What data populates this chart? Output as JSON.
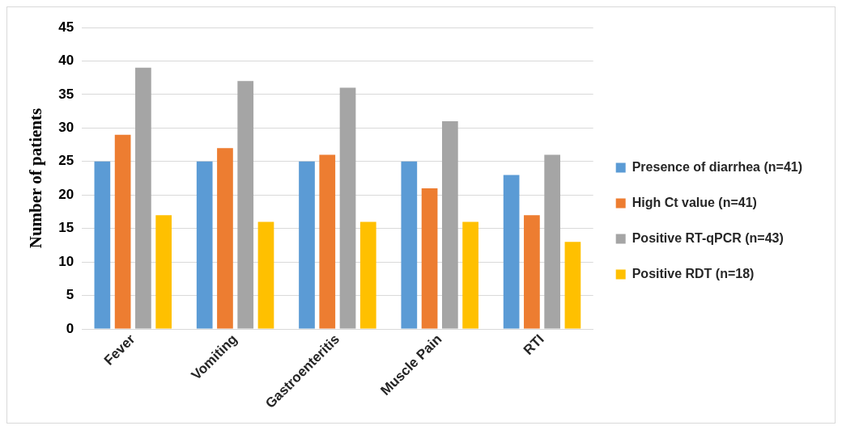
{
  "chart_data": {
    "type": "bar",
    "ylabel": "Number of patients",
    "categories": [
      "Fever",
      "Vomiting",
      "Gastroenteritis",
      "Muscle Pain",
      "RTI"
    ],
    "series": [
      {
        "name": "Presence of diarrhea (n=41)",
        "color": "#5b9bd5",
        "values": [
          25,
          25,
          25,
          25,
          23
        ]
      },
      {
        "name": "High Ct value (n=41)",
        "color": "#ed7d31",
        "values": [
          29,
          27,
          26,
          21,
          17
        ]
      },
      {
        "name": "Positive RT-qPCR (n=43)",
        "color": "#a5a5a5",
        "values": [
          39,
          37,
          36,
          31,
          26
        ]
      },
      {
        "name": "Positive RDT (n=18)",
        "color": "#ffc000",
        "values": [
          17,
          16,
          16,
          16,
          13
        ]
      }
    ],
    "ylim": [
      0,
      45
    ],
    "yticks": [
      0,
      5,
      10,
      15,
      20,
      25,
      30,
      35,
      40,
      45
    ],
    "grid": "y",
    "legend": "right"
  }
}
